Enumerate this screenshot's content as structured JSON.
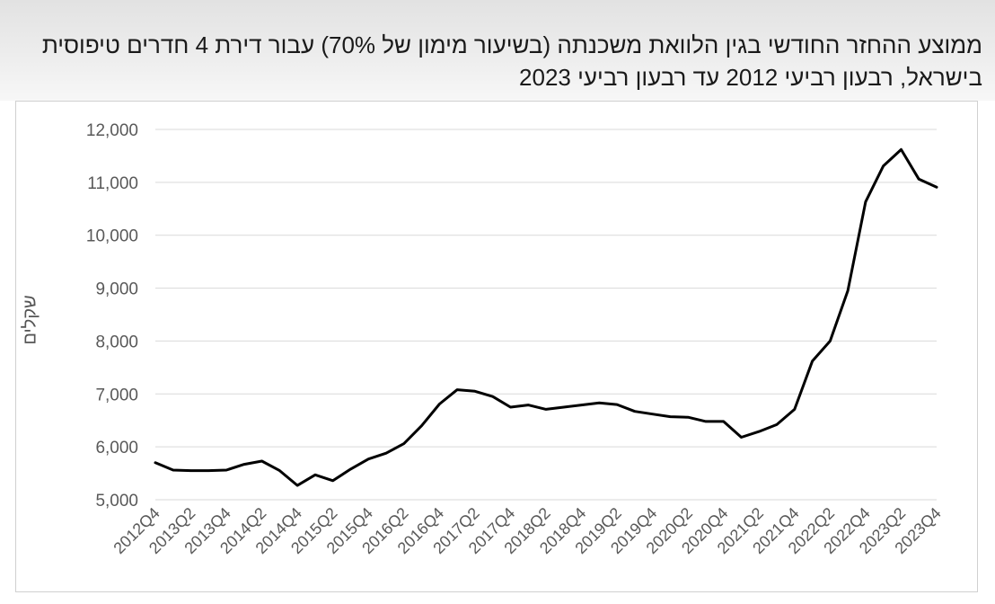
{
  "header": {
    "title": "ממוצע ההחזר החודשי בגין הלוואת משכנתה (בשיעור מימון של 70%) עבור דירת 4 חדרים טיפוסית בישראל, רבעון רביעי 2012 עד רבעון רביעי 2023"
  },
  "chart_data": {
    "type": "line",
    "title": "ממוצע ההחזר החודשי בגין הלוואת משכנתה (בשיעור מימון של 70%) עבור דירת 4 חדרים טיפוסית בישראל, רבעון רביעי 2012 עד רבעון רביעי 2023",
    "xlabel": "",
    "ylabel": "שקלים",
    "ylim": [
      5000,
      12000
    ],
    "yticks": [
      "5,000",
      "6,000",
      "7,000",
      "8,000",
      "9,000",
      "10,000",
      "11,000",
      "12,000"
    ],
    "grid": true,
    "x": [
      "2012Q4",
      "2013Q1",
      "2013Q2",
      "2013Q3",
      "2013Q4",
      "2014Q1",
      "2014Q2",
      "2014Q3",
      "2014Q4",
      "2015Q1",
      "2015Q2",
      "2015Q3",
      "2015Q4",
      "2016Q1",
      "2016Q2",
      "2016Q3",
      "2016Q4",
      "2017Q1",
      "2017Q2",
      "2017Q3",
      "2017Q4",
      "2018Q1",
      "2018Q2",
      "2018Q3",
      "2018Q4",
      "2019Q1",
      "2019Q2",
      "2019Q3",
      "2019Q4",
      "2020Q1",
      "2020Q2",
      "2020Q3",
      "2020Q4",
      "2021Q1",
      "2021Q2",
      "2021Q3",
      "2021Q4",
      "2022Q1",
      "2022Q2",
      "2022Q3",
      "2022Q4",
      "2023Q1",
      "2023Q2",
      "2023Q3",
      "2023Q4"
    ],
    "xtick_labels": [
      "2012Q4",
      "2013Q2",
      "2013Q4",
      "2014Q2",
      "2014Q4",
      "2015Q2",
      "2015Q4",
      "2016Q2",
      "2016Q4",
      "2017Q2",
      "2017Q4",
      "2018Q2",
      "2018Q4",
      "2019Q2",
      "2019Q4",
      "2020Q2",
      "2020Q4",
      "2021Q2",
      "2021Q4",
      "2022Q2",
      "2022Q4",
      "2023Q2",
      "2023Q4"
    ],
    "series": [
      {
        "color": "#000000",
        "values": [
          5700,
          5560,
          5550,
          5550,
          5560,
          5670,
          5730,
          5550,
          5270,
          5470,
          5360,
          5580,
          5770,
          5880,
          6060,
          6400,
          6810,
          7080,
          7050,
          6950,
          6750,
          6790,
          6710,
          6750,
          6790,
          6830,
          6800,
          6670,
          6620,
          6570,
          6560,
          6480,
          6480,
          6180,
          6290,
          6420,
          6710,
          7620,
          8000,
          8950,
          10630,
          11310,
          11620,
          11060,
          10910
        ]
      }
    ]
  }
}
